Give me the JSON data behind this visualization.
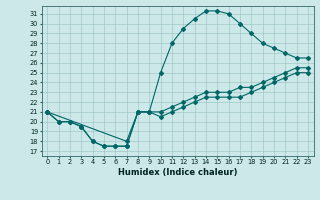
{
  "title": "",
  "xlabel": "Humidex (Indice chaleur)",
  "bg_color": "#cce8e8",
  "line_color": "#006666",
  "xlim": [
    -0.5,
    23.5
  ],
  "ylim": [
    16.5,
    31.8
  ],
  "yticks": [
    17,
    18,
    19,
    20,
    21,
    22,
    23,
    24,
    25,
    26,
    27,
    28,
    29,
    30,
    31
  ],
  "xticks": [
    0,
    1,
    2,
    3,
    4,
    5,
    6,
    7,
    8,
    9,
    10,
    11,
    12,
    13,
    14,
    15,
    16,
    17,
    18,
    19,
    20,
    21,
    22,
    23
  ],
  "line1_x": [
    0,
    1,
    2,
    3,
    4,
    5,
    6,
    7,
    8,
    9,
    10,
    11,
    12,
    13,
    14,
    15,
    16,
    17,
    18,
    19,
    20,
    21,
    22,
    23
  ],
  "line1_y": [
    21,
    20,
    20,
    19.5,
    18,
    17.5,
    17.5,
    17.5,
    21,
    21,
    21,
    21.5,
    22,
    22.5,
    23,
    23,
    23,
    23.5,
    23.5,
    24,
    24.5,
    25,
    25.5,
    25.5
  ],
  "line2_x": [
    0,
    1,
    2,
    3,
    4,
    5,
    6,
    7,
    8,
    9,
    10,
    11,
    12,
    13,
    14,
    15,
    16,
    17,
    18,
    19,
    20,
    21,
    22,
    23
  ],
  "line2_y": [
    21,
    20,
    20,
    19.5,
    18,
    17.5,
    17.5,
    17.5,
    21,
    21,
    20.5,
    21,
    21.5,
    22,
    22.5,
    22.5,
    22.5,
    22.5,
    23,
    23.5,
    24,
    24.5,
    25,
    25
  ],
  "line3_x": [
    0,
    7,
    8,
    9,
    10,
    11,
    12,
    13,
    14,
    15,
    16,
    17,
    18,
    19,
    20,
    21,
    22,
    23
  ],
  "line3_y": [
    21,
    18,
    21,
    21,
    25,
    28,
    29.5,
    30.5,
    31.3,
    31.3,
    31,
    30,
    29,
    28,
    27.5,
    27,
    26.5,
    26.5
  ]
}
